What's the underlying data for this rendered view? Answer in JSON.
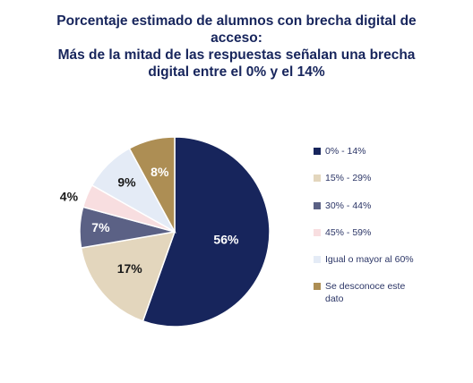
{
  "title_lines": [
    "Porcentaje estimado de alumnos con brecha digital de",
    "acceso:",
    "Más de la mitad de las respuestas señalan una brecha",
    "digital entre el 0% y el 14%"
  ],
  "chart_data": {
    "type": "pie",
    "title": "Porcentaje estimado de alumnos con brecha digital de acceso: Más de la mitad de las respuestas señalan una brecha digital entre el 0% y el 14%",
    "categories": [
      "0% - 14%",
      "15% - 29%",
      "30% - 44%",
      "45% - 59%",
      "Igual o mayor al 60%",
      "Se desconoce este dato"
    ],
    "values": [
      56,
      17,
      7,
      4,
      9,
      8
    ],
    "labels": [
      "56%",
      "17%",
      "7%",
      "4%",
      "9%",
      "8%"
    ],
    "colors": [
      "#17255c",
      "#e3d6bd",
      "#5b6185",
      "#f8dee0",
      "#e4ebf6",
      "#ad8e54"
    ],
    "label_colors": [
      "#ffffff",
      "#1a1a1a",
      "#ffffff",
      "#1a1a1a",
      "#1a1a1a",
      "#ffffff"
    ],
    "legend_position": "right"
  }
}
